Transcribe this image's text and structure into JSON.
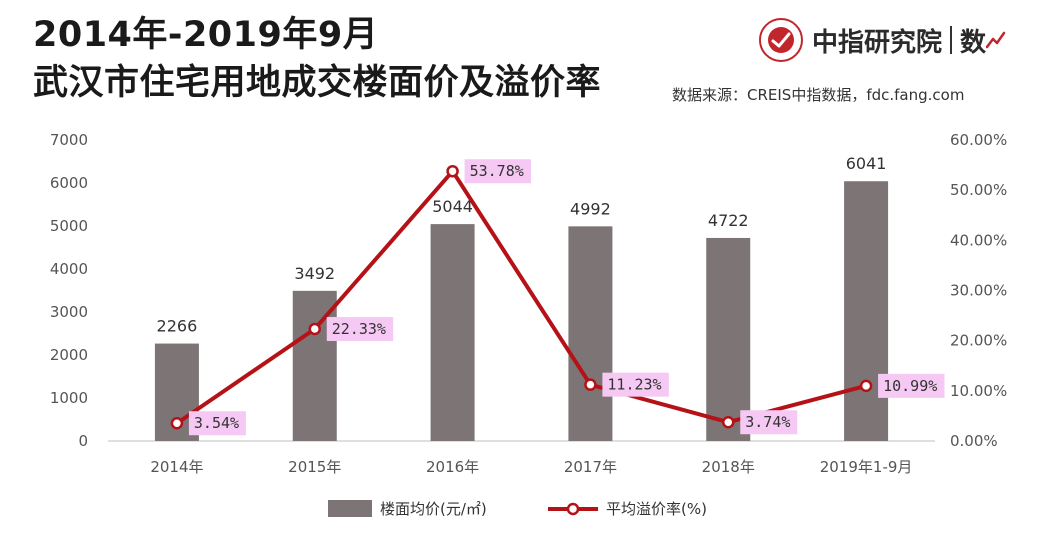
{
  "header": {
    "title_line1": "2014年-2019年9月",
    "title_line2": "武汉市住宅用地成交楼面价及溢价率",
    "source": "数据来源：CREIS中指数据，fdc.fang.com",
    "brand_name": "中指研究院",
    "brand_suffix": "数"
  },
  "colors": {
    "bar": "#7d7475",
    "line": "#b51218",
    "label_bg": "#f6c9f4",
    "brand_red": "#c0262c"
  },
  "chart_data": {
    "type": "bar",
    "categories": [
      "2014年",
      "2015年",
      "2016年",
      "2017年",
      "2018年",
      "2019年1-9月"
    ],
    "series": [
      {
        "name": "楼面均价(元/㎡)",
        "type": "bar",
        "axis": "left",
        "values": [
          2266,
          3492,
          5044,
          4992,
          4722,
          6041
        ],
        "labels": [
          "2266",
          "3492",
          "5044",
          "4992",
          "4722",
          "6041"
        ]
      },
      {
        "name": "平均溢价率(%)",
        "type": "line",
        "axis": "right",
        "values": [
          3.54,
          22.33,
          53.78,
          11.23,
          3.74,
          10.99
        ],
        "labels": [
          "3.54%",
          "22.33%",
          "53.78%",
          "11.23%",
          "3.74%",
          "10.99%"
        ]
      }
    ],
    "y_left": {
      "range": [
        0,
        7000
      ],
      "ticks": [
        "0",
        "1000",
        "2000",
        "3000",
        "4000",
        "5000",
        "6000",
        "7000"
      ]
    },
    "y_right": {
      "range": [
        0,
        60
      ],
      "ticks": [
        "0.00%",
        "10.00%",
        "20.00%",
        "30.00%",
        "40.00%",
        "50.00%",
        "60.00%"
      ]
    },
    "grid": false,
    "legend_position": "bottom-center"
  }
}
